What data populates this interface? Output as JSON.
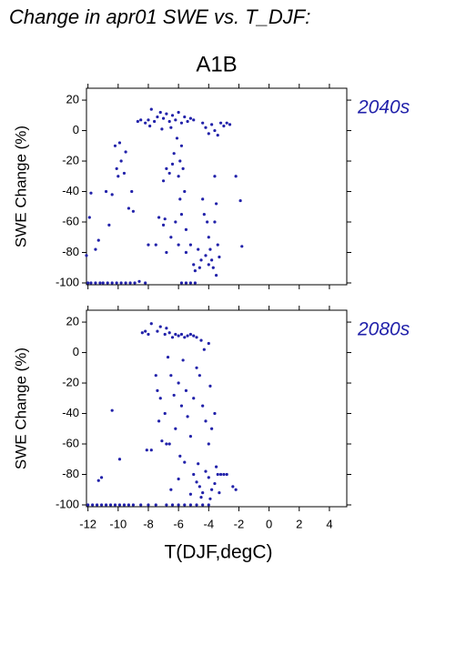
{
  "chart_data": [
    {
      "type": "scatter",
      "title": "Change in apr01 SWE vs. T_DJF:",
      "subtitle": "A1B",
      "label": "2040s",
      "ylabel": "SWE Change (%)",
      "color": "#2222aa",
      "xlim": [
        -12.1,
        5.15
      ],
      "ylim": [
        -101.2,
        27.8
      ],
      "xticks": [
        -12,
        -10,
        -8,
        -6,
        -4,
        -2,
        0,
        2,
        4
      ],
      "yticks": [
        -100,
        -80,
        -60,
        -40,
        -20,
        0,
        20
      ],
      "x": [
        -12,
        -11.8,
        -11.5,
        -11.2,
        -11,
        -10.7,
        -10.4,
        -10.1,
        -9.8,
        -9.5,
        -9.2,
        -8.9,
        -8.6,
        -8.2,
        -5.8,
        -5.5,
        -5.2,
        -4.9,
        -12.1,
        -11.8,
        -11.5,
        -11.3,
        -10.8,
        -10.6,
        -10.4,
        -10.2,
        -10.1,
        -10,
        -9.9,
        -9.8,
        -9.6,
        -9.5,
        -9.3,
        -9.1,
        -9,
        -11.9,
        -8.7,
        -8.5,
        -8.2,
        -8,
        -7.8,
        -7.6,
        -7.4,
        -7.2,
        -7,
        -6.8,
        -6.6,
        -6.4,
        -6.2,
        -6,
        -5.8,
        -5.6,
        -5.4,
        -5.2,
        -5,
        -7.9,
        -7.1,
        -6.5,
        -4.4,
        -4.2,
        -4,
        -3.8,
        -3.6,
        -3.4,
        -3.2,
        -3,
        -2.8,
        -2.6,
        -2.2,
        -1.9,
        -1.8,
        -6.3,
        -6.1,
        -5.9,
        -5.7,
        -5.8,
        -6,
        -5.6,
        -5.9,
        -6.2,
        -5.8,
        -5.5,
        -6.4,
        -6.6,
        -6.8,
        -7,
        -6.5,
        -6,
        -5.5,
        -5.2,
        -4.4,
        -4.3,
        -4.1,
        -4,
        -3.9,
        -4.2,
        -4.5,
        -4,
        -3.8,
        -3.7,
        -4.6,
        -4.9,
        -3.6,
        -3.5,
        -3.4,
        -3.3,
        -3.5,
        -4.7,
        -5,
        -3.6,
        -7.5,
        -8,
        -7.3,
        -7,
        -6.8,
        -6.9
      ],
      "y": [
        -100,
        -100,
        -100,
        -100,
        -100,
        -100,
        -100,
        -100,
        -100,
        -100,
        -100,
        -100,
        -99,
        -100,
        -100,
        -100,
        -100,
        -100,
        -82,
        -41,
        -78,
        -72,
        -40,
        -62,
        -42,
        -10,
        -25,
        -30,
        -8,
        -20,
        -28,
        -14,
        -51,
        -40,
        -53,
        -57,
        6,
        7,
        5,
        7,
        14,
        6,
        9,
        12,
        8,
        11,
        6,
        10,
        7,
        12,
        5,
        9,
        6,
        8,
        7,
        3,
        1,
        2,
        5,
        2,
        -2,
        4,
        0,
        -3,
        5,
        3,
        5,
        4,
        -30,
        -46,
        -76,
        -15,
        -5,
        -20,
        -25,
        -10,
        -30,
        -40,
        -45,
        -60,
        -55,
        -65,
        -22,
        -28,
        -25,
        -33,
        -70,
        -75,
        -80,
        -75,
        -45,
        -55,
        -60,
        -70,
        -78,
        -82,
        -85,
        -88,
        -85,
        -90,
        -90,
        -92,
        -60,
        -48,
        -75,
        -83,
        -95,
        -78,
        -88,
        -30,
        -75,
        -75,
        -57,
        -62,
        -80,
        -58
      ]
    },
    {
      "type": "scatter",
      "label": "2080s",
      "ylabel": "SWE Change (%)",
      "xlabel": "T(DJF,degC)",
      "color": "#2222aa",
      "xlim": [
        -12.1,
        5.15
      ],
      "ylim": [
        -101.2,
        27.8
      ],
      "xticks": [
        -12,
        -10,
        -8,
        -6,
        -4,
        -2,
        0,
        2,
        4
      ],
      "yticks": [
        -100,
        -80,
        -60,
        -40,
        -20,
        0,
        20
      ],
      "x": [
        -12,
        -11.7,
        -11.4,
        -11.1,
        -10.8,
        -10.5,
        -10.2,
        -9.9,
        -9.6,
        -9.3,
        -9,
        -8.5,
        -8,
        -7.5,
        -6.8,
        -6.4,
        -6,
        -5.6,
        -5.2,
        -4.8,
        -4.4,
        -4,
        -11.3,
        -11.1,
        -10.4,
        -9.9,
        -8.4,
        -8.2,
        -8,
        -7.8,
        -7.4,
        -7.2,
        -6.9,
        -6.6,
        -6.4,
        -6.2,
        -6,
        -5.8,
        -5.6,
        -5.4,
        -5.2,
        -5,
        -4.8,
        -6.8,
        -4.5,
        -4.3,
        -4,
        -7.5,
        -7.4,
        -7.2,
        -7.3,
        -7.1,
        -6.9,
        -6.7,
        -6.5,
        -6.3,
        -6,
        -5.8,
        -6.2,
        -5.7,
        -5.5,
        -5.4,
        -5.2,
        -5,
        -4.8,
        -4.6,
        -4.4,
        -4.2,
        -4,
        -3.8,
        -3.6,
        -3.9,
        -6.6,
        -6.8,
        -7.8,
        -8.1,
        -5.6,
        -5.9,
        -5,
        -4.8,
        -4.6,
        -4.4,
        -4.2,
        -4,
        -3.8,
        -3.6,
        -3.4,
        -3.2,
        -3,
        -2.8,
        -2.4,
        -2.2,
        -4.5,
        -3.9,
        -5.2,
        -6,
        -6.5,
        -3.5,
        -3.3,
        -4.7
      ],
      "y": [
        -100,
        -100,
        -100,
        -100,
        -100,
        -100,
        -100,
        -100,
        -100,
        -100,
        -100,
        -100,
        -100,
        -100,
        -100,
        -100,
        -100,
        -100,
        -100,
        -100,
        -100,
        -100,
        -84,
        -82,
        -38,
        -70,
        13,
        14,
        12,
        19,
        14,
        17,
        12,
        13,
        10,
        12,
        11,
        12,
        10,
        11,
        12,
        11,
        10,
        16,
        8,
        2,
        6,
        -15,
        -25,
        -30,
        -45,
        -58,
        -40,
        -3,
        -15,
        -28,
        -20,
        -35,
        -50,
        -5,
        -25,
        -42,
        -55,
        -30,
        -10,
        -15,
        -35,
        -45,
        -60,
        -50,
        -40,
        -22,
        -60,
        -60,
        -64,
        -64,
        -72,
        -68,
        -80,
        -85,
        -88,
        -92,
        -78,
        -82,
        -90,
        -86,
        -80,
        -80,
        -80,
        -80,
        -88,
        -90,
        -95,
        -96,
        -93,
        -83,
        -90,
        -75,
        -92,
        -73
      ]
    }
  ]
}
